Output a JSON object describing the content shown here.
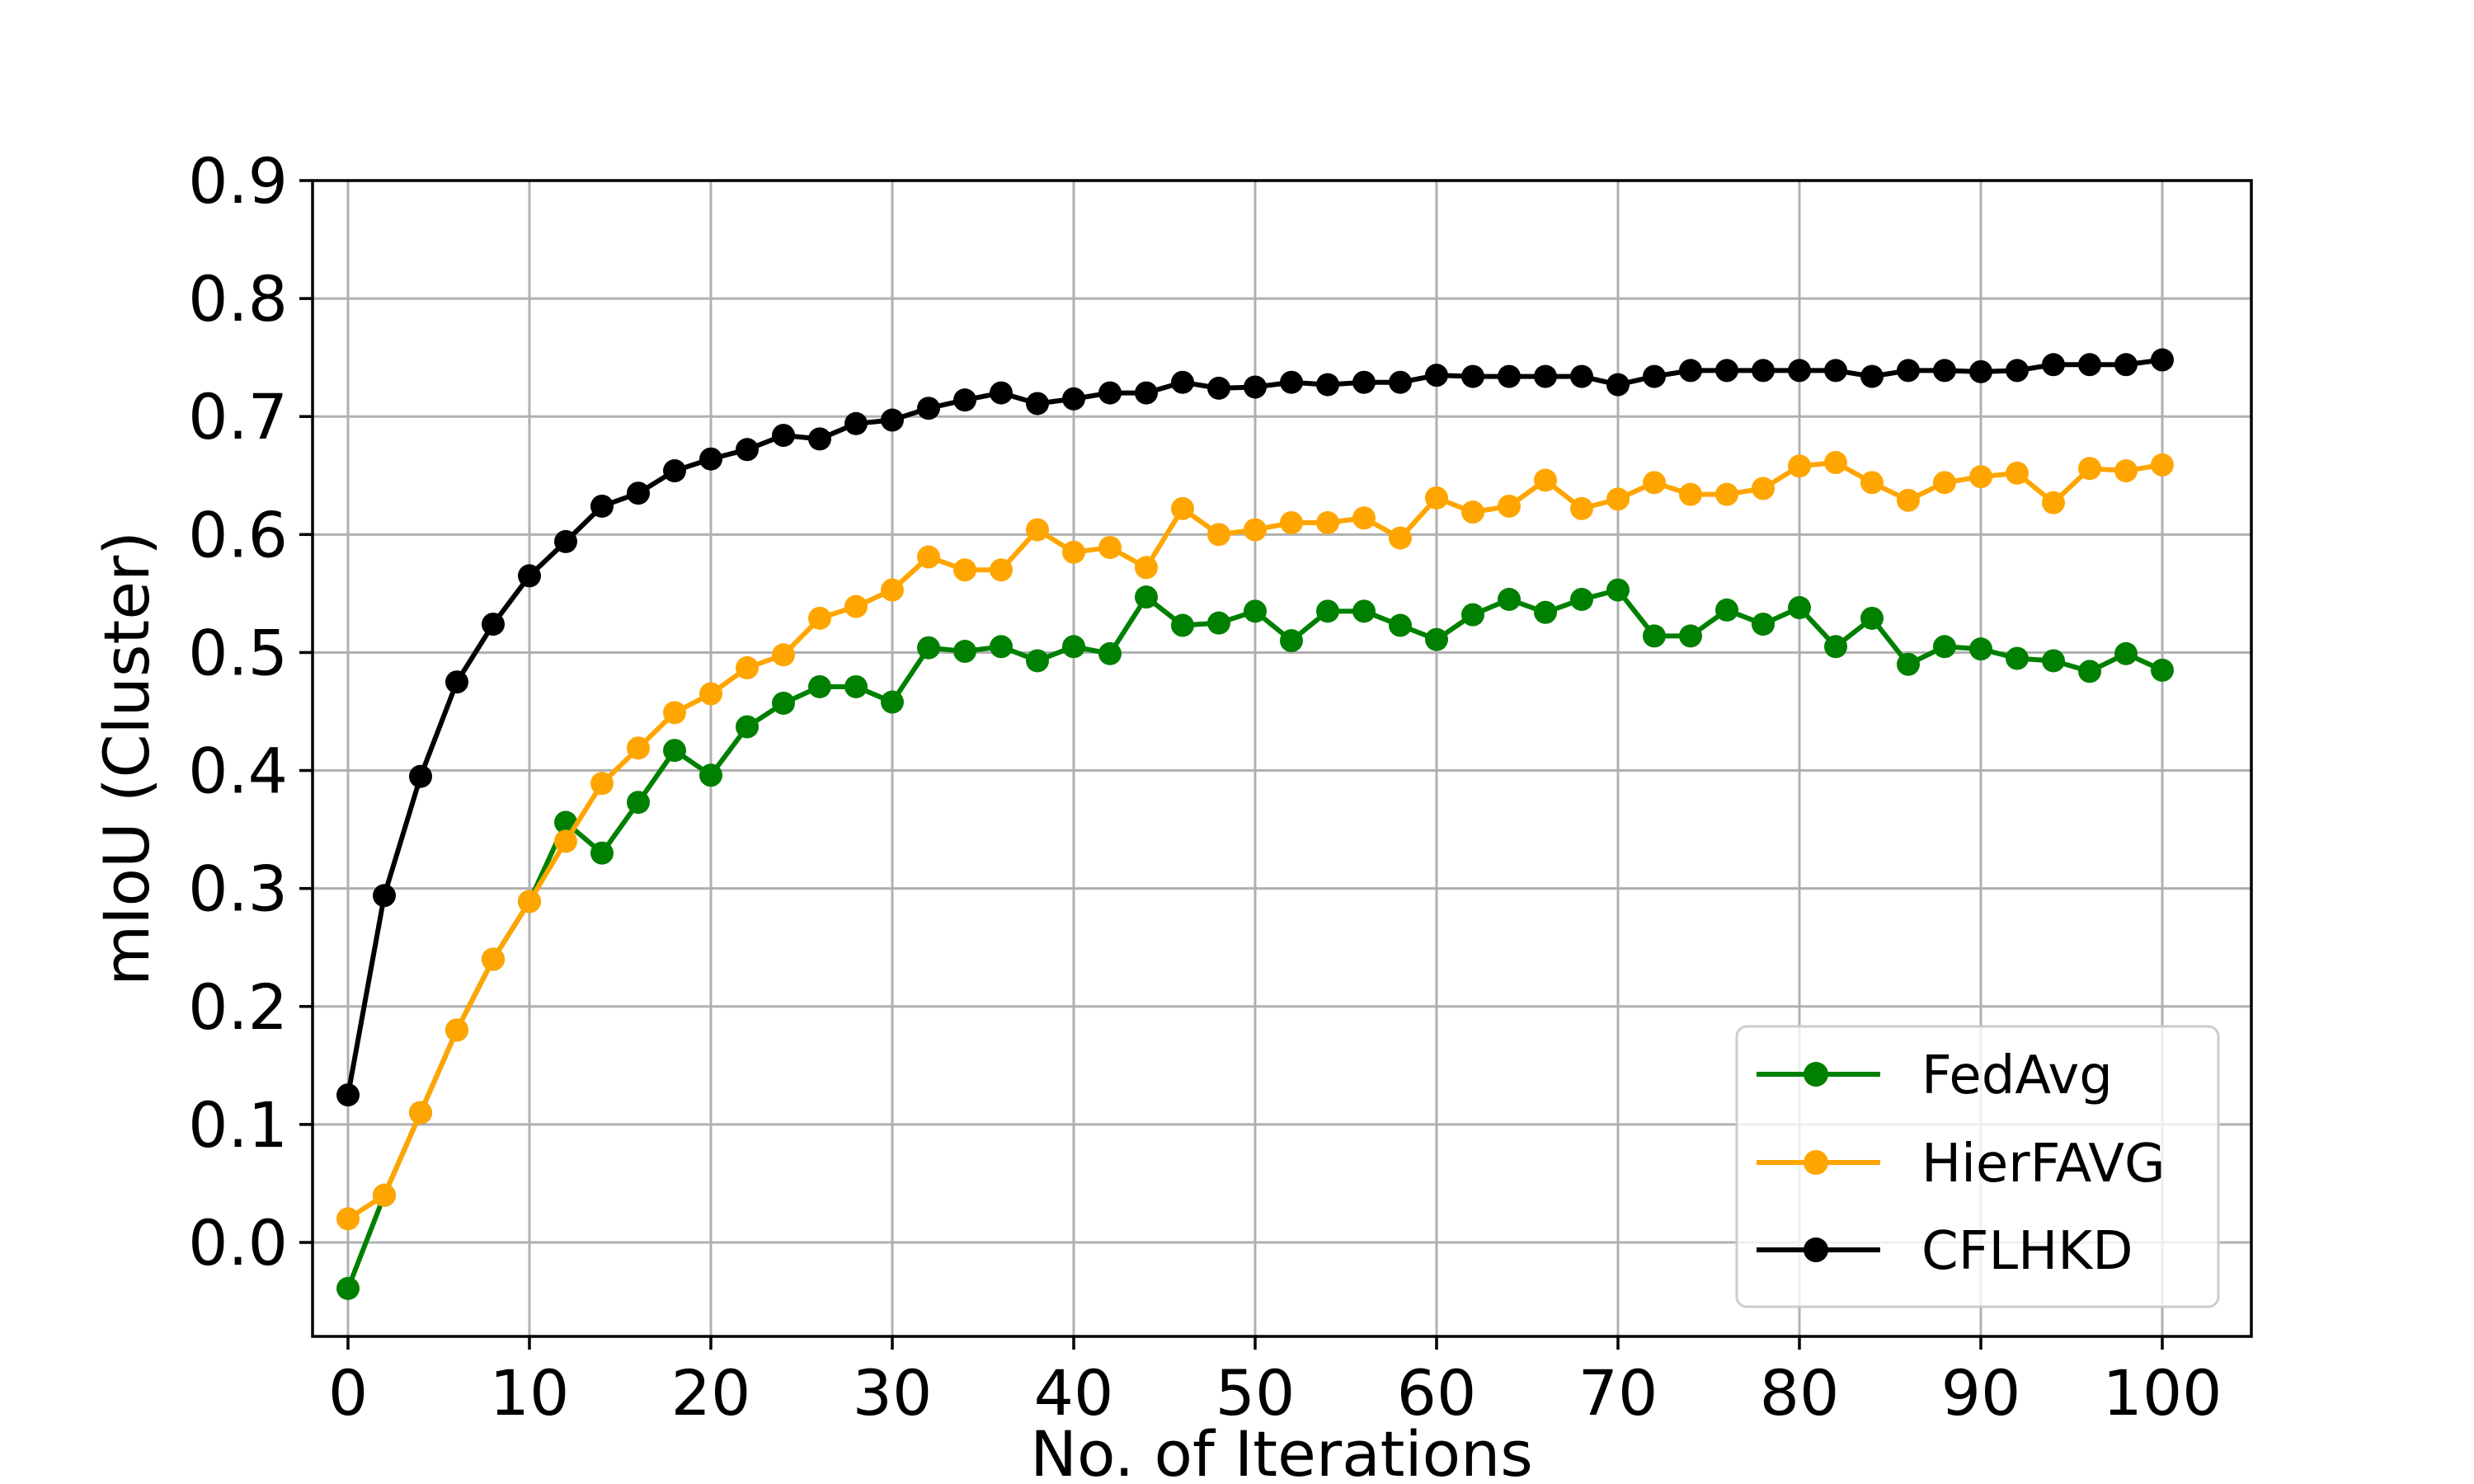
{
  "chart_data": {
    "type": "line",
    "title": "",
    "xlabel": "No. of Iterations",
    "ylabel": "mIoU (Cluster)",
    "xlim": [
      -2,
      105
    ],
    "ylim": [
      -0.08,
      0.9
    ],
    "grid": true,
    "legend_position": "lower right",
    "x_ticks": [
      0,
      10,
      20,
      30,
      40,
      50,
      60,
      70,
      80,
      90,
      100
    ],
    "x_tick_labels": [
      "0",
      "10",
      "20",
      "30",
      "40",
      "50",
      "60",
      "70",
      "80",
      "90",
      "100"
    ],
    "y_ticks": [
      0.0,
      0.1,
      0.2,
      0.3,
      0.4,
      0.5,
      0.6,
      0.7,
      0.8,
      0.9
    ],
    "y_tick_labels": [
      "0.0",
      "0.1",
      "0.2",
      "0.3",
      "0.4",
      "0.5",
      "0.6",
      "0.7",
      "0.8",
      "0.9"
    ],
    "x": [
      0,
      2,
      4,
      6,
      8,
      10,
      12,
      14,
      16,
      18,
      20,
      22,
      24,
      26,
      28,
      30,
      32,
      34,
      36,
      38,
      40,
      42,
      44,
      46,
      48,
      50,
      52,
      54,
      56,
      58,
      60,
      62,
      64,
      66,
      68,
      70,
      72,
      74,
      76,
      78,
      80,
      82,
      84,
      86,
      88,
      90,
      92,
      94,
      96,
      98,
      100
    ],
    "series": [
      {
        "name": "FedAvg",
        "color": "#008000",
        "marker": "circle",
        "values": [
          -0.039,
          0.04,
          0.11,
          0.18,
          0.24,
          0.289,
          0.356,
          0.33,
          0.373,
          0.417,
          0.396,
          0.437,
          0.457,
          0.471,
          0.471,
          0.458,
          0.504,
          0.501,
          0.505,
          0.493,
          0.505,
          0.499,
          0.547,
          0.523,
          0.525,
          0.535,
          0.51,
          0.535,
          0.535,
          0.523,
          0.511,
          0.532,
          0.545,
          0.534,
          0.545,
          0.553,
          0.514,
          0.514,
          0.536,
          0.524,
          0.538,
          0.505,
          0.529,
          0.49,
          0.505,
          0.503,
          0.495,
          0.493,
          0.484,
          0.499,
          0.485
        ]
      },
      {
        "name": "HierFAVG",
        "color": "#FFA500",
        "marker": "circle",
        "values": [
          0.02,
          0.04,
          0.11,
          0.18,
          0.24,
          0.289,
          0.34,
          0.389,
          0.419,
          0.449,
          0.465,
          0.487,
          0.498,
          0.529,
          0.539,
          0.553,
          0.581,
          0.57,
          0.57,
          0.604,
          0.585,
          0.589,
          0.572,
          0.622,
          0.6,
          0.604,
          0.61,
          0.61,
          0.614,
          0.597,
          0.631,
          0.619,
          0.624,
          0.646,
          0.622,
          0.63,
          0.644,
          0.634,
          0.634,
          0.639,
          0.658,
          0.661,
          0.644,
          0.629,
          0.644,
          0.649,
          0.652,
          0.627,
          0.656,
          0.654,
          0.659
        ]
      },
      {
        "name": "CFLHKD",
        "color": "#000000",
        "marker": "circle",
        "values": [
          0.125,
          0.294,
          0.395,
          0.475,
          0.524,
          0.565,
          0.594,
          0.624,
          0.635,
          0.654,
          0.664,
          0.672,
          0.684,
          0.681,
          0.694,
          0.697,
          0.707,
          0.714,
          0.72,
          0.711,
          0.715,
          0.72,
          0.72,
          0.729,
          0.724,
          0.725,
          0.729,
          0.727,
          0.729,
          0.729,
          0.735,
          0.734,
          0.734,
          0.734,
          0.734,
          0.727,
          0.734,
          0.739,
          0.739,
          0.739,
          0.739,
          0.739,
          0.734,
          0.739,
          0.739,
          0.738,
          0.739,
          0.744,
          0.744,
          0.744,
          0.748
        ]
      }
    ]
  }
}
